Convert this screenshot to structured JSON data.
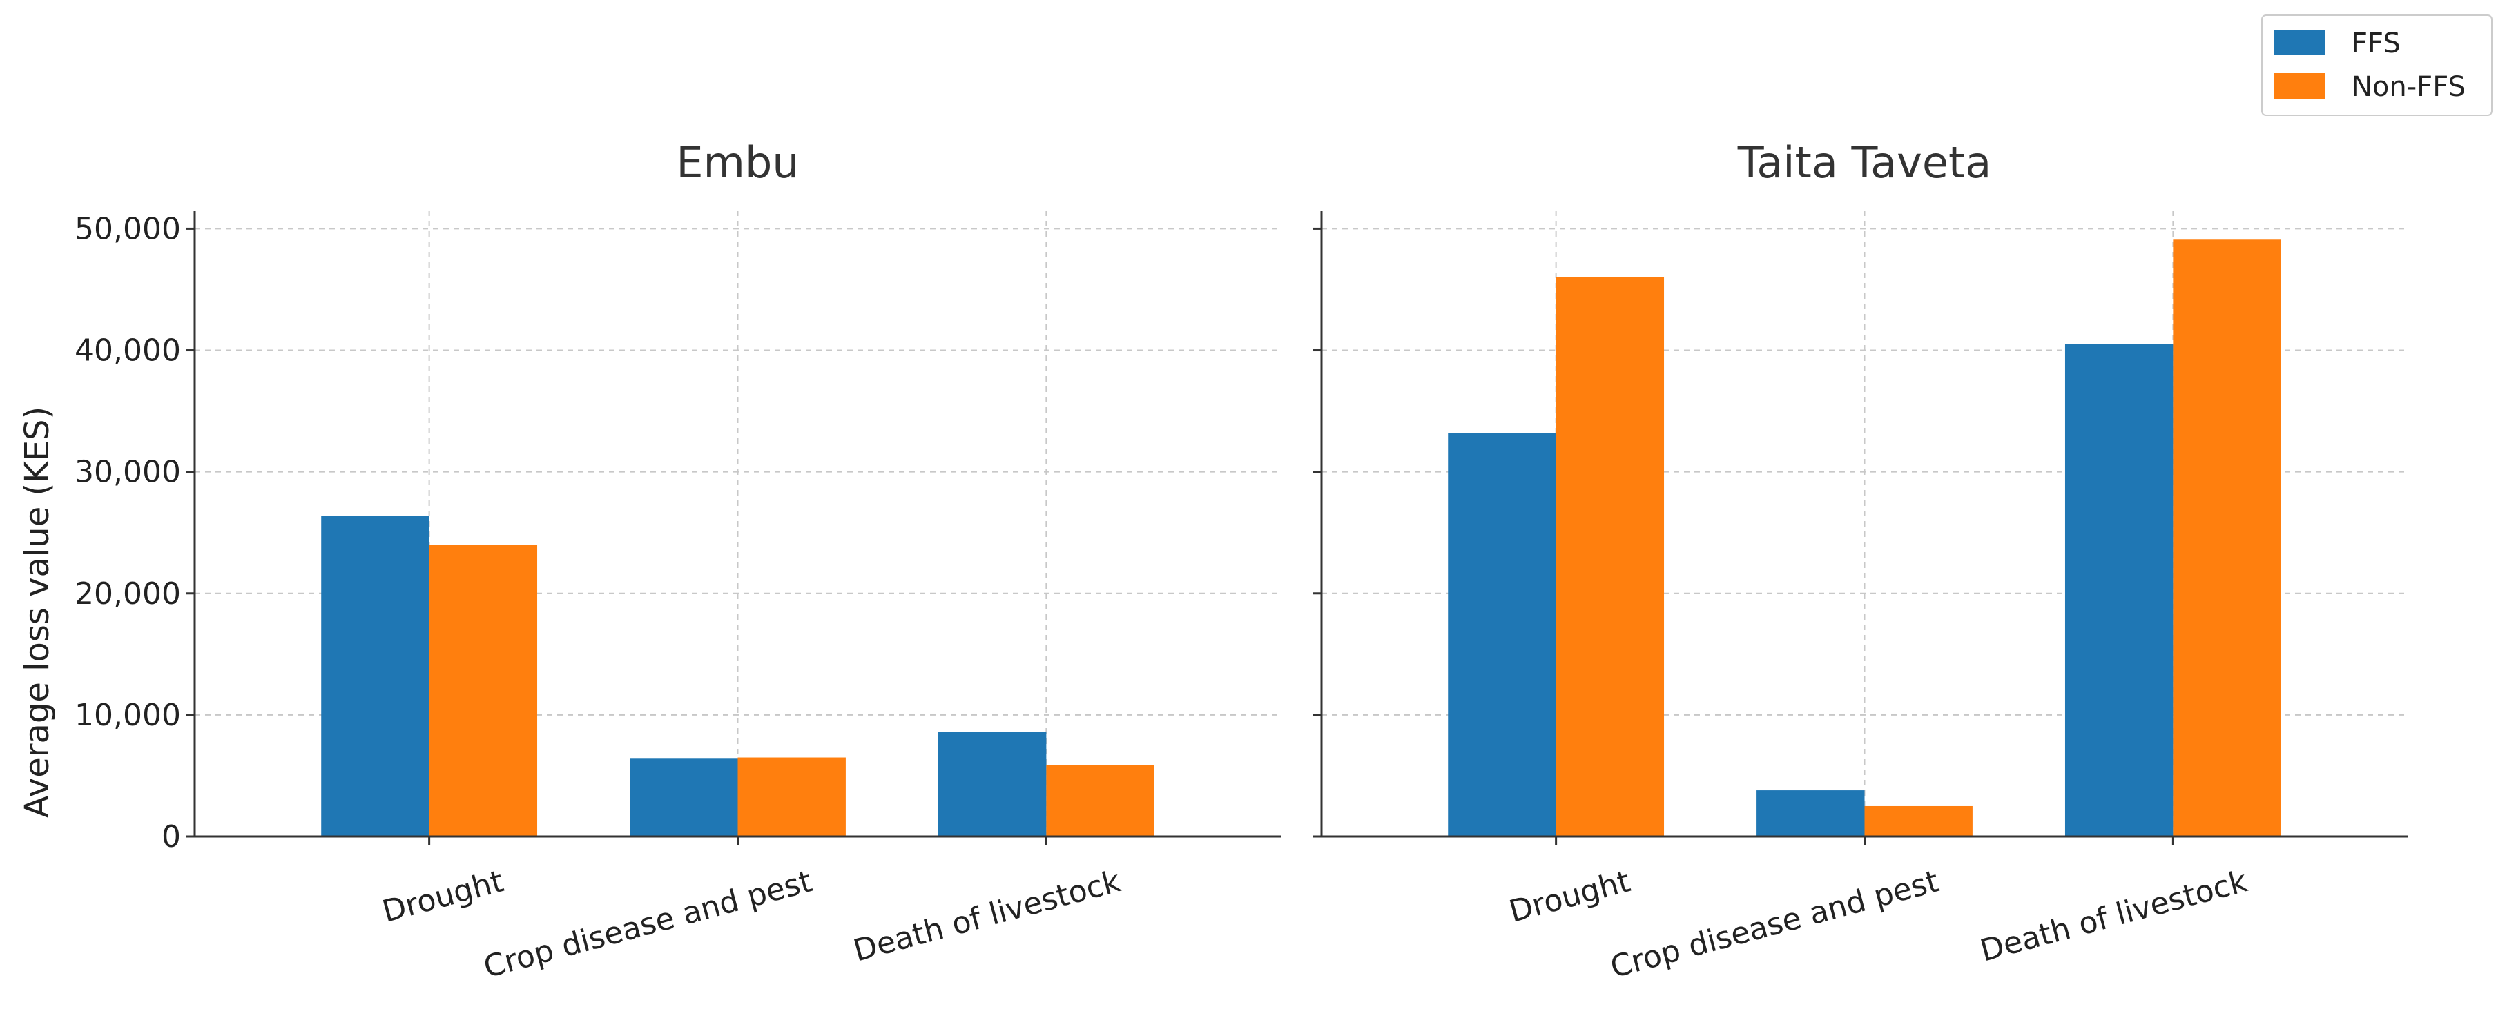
{
  "chart_data": [
    {
      "type": "bar",
      "title": "Embu",
      "ylabel": "Average loss value (KES)",
      "xlabel": "",
      "categories": [
        "Drought",
        "Crop disease and pest",
        "Death of livestock"
      ],
      "series": [
        {
          "name": "FFS",
          "values": [
            26400,
            6400,
            8600
          ]
        },
        {
          "name": "Non-FFS",
          "values": [
            24000,
            6500,
            5900
          ]
        }
      ],
      "ylim": [
        0,
        51500
      ],
      "yticks": [
        0,
        10000,
        20000,
        30000,
        40000,
        50000
      ],
      "ytick_labels": [
        "0",
        "10,000",
        "20,000",
        "30,000",
        "40,000",
        "50,000"
      ],
      "grid": true
    },
    {
      "type": "bar",
      "title": "Taita Taveta",
      "ylabel": "",
      "xlabel": "",
      "categories": [
        "Drought",
        "Crop disease and pest",
        "Death of livestock"
      ],
      "series": [
        {
          "name": "FFS",
          "values": [
            33200,
            3800,
            40500
          ]
        },
        {
          "name": "Non-FFS",
          "values": [
            46000,
            2500,
            49100
          ]
        }
      ],
      "ylim": [
        0,
        51500
      ],
      "yticks": [
        0,
        10000,
        20000,
        30000,
        40000,
        50000
      ],
      "grid": true
    }
  ],
  "legend": {
    "placement": "top-right",
    "items": [
      {
        "label": "FFS",
        "color": "#1f77b4"
      },
      {
        "label": "Non-FFS",
        "color": "#ff7f0e"
      }
    ]
  },
  "colors": {
    "FFS": "#1f77b4",
    "Non-FFS": "#ff7f0e"
  }
}
